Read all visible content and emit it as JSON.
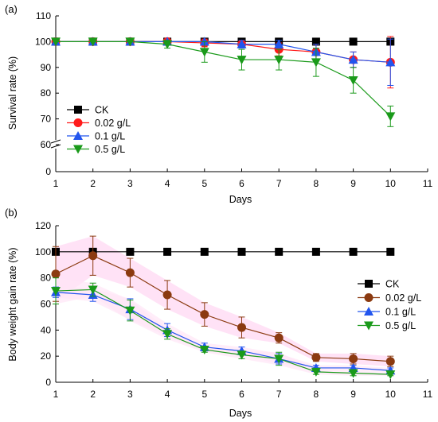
{
  "chart_data": [
    {
      "type": "line",
      "panel_label": "(a)",
      "xlabel": "Days",
      "ylabel": "Survival rate (%)",
      "x": [
        1,
        2,
        3,
        4,
        5,
        6,
        7,
        8,
        9,
        10
      ],
      "xticks": [
        1,
        2,
        3,
        4,
        5,
        6,
        7,
        8,
        9,
        10,
        11
      ],
      "yticks_upper": [
        60,
        70,
        80,
        90,
        100,
        110
      ],
      "yticks_lower": [
        0
      ],
      "ylim": [
        0,
        110
      ],
      "axis_break": [
        0,
        60
      ],
      "legend_position": "bottom-left",
      "series": [
        {
          "name": "CK",
          "color": "#000000",
          "marker": "square",
          "values": [
            100,
            100,
            100,
            100,
            100,
            100,
            100,
            100,
            100,
            100
          ],
          "errors": [
            0,
            0,
            0,
            0,
            0,
            0,
            0,
            0,
            0,
            0
          ]
        },
        {
          "name": "0.02 g/L",
          "color": "#ff1a1a",
          "marker": "circle",
          "values": [
            100,
            100,
            100,
            100,
            99.5,
            99,
            97,
            96,
            93,
            92
          ],
          "errors": [
            0,
            0,
            0,
            0,
            1.5,
            1.5,
            2.5,
            3,
            3,
            10
          ]
        },
        {
          "name": "0.1 g/L",
          "color": "#2255ee",
          "marker": "triangle-up",
          "values": [
            100,
            100,
            100,
            100,
            100,
            99,
            99,
            96,
            93,
            92
          ],
          "errors": [
            0,
            0,
            0,
            0,
            0,
            1.5,
            1.5,
            3,
            3,
            9
          ]
        },
        {
          "name": "0.5 g/L",
          "color": "#1a9a1a",
          "marker": "triangle-down",
          "values": [
            100,
            100,
            100,
            99,
            96,
            93,
            93,
            92,
            85,
            71
          ],
          "errors": [
            0,
            0,
            0,
            1.5,
            4,
            4,
            4,
            5.5,
            5,
            4
          ]
        }
      ]
    },
    {
      "type": "line",
      "panel_label": "(b)",
      "xlabel": "Days",
      "ylabel": "Body weight gain rate (%)",
      "x": [
        1,
        2,
        3,
        4,
        5,
        6,
        7,
        8,
        9,
        10
      ],
      "xticks": [
        1,
        2,
        3,
        4,
        5,
        6,
        7,
        8,
        9,
        10,
        11
      ],
      "yticks": [
        0,
        20,
        40,
        60,
        80,
        100,
        120
      ],
      "ylim": [
        0,
        120
      ],
      "legend_position": "right",
      "series": [
        {
          "name": "CK",
          "color": "#000000",
          "marker": "square",
          "values": [
            100,
            100,
            100,
            100,
            100,
            100,
            100,
            100,
            100,
            100
          ],
          "errors": [
            0,
            0,
            0,
            0,
            0,
            0,
            0,
            0,
            0,
            0
          ]
        },
        {
          "name": "0.02 g/L",
          "color": "#8b3a10",
          "marker": "circle",
          "values": [
            83,
            97,
            84,
            67,
            52,
            42,
            34,
            19,
            18,
            16
          ],
          "errors": [
            21,
            15,
            11,
            11,
            9,
            8,
            4,
            3,
            4,
            4
          ]
        },
        {
          "name": "0.1 g/L",
          "color": "#2255ee",
          "marker": "triangle-up",
          "values": [
            69,
            67,
            56,
            40,
            27,
            24,
            18,
            11,
            11,
            9
          ],
          "errors": [
            4,
            5,
            8,
            5,
            3,
            3,
            4,
            2,
            2,
            2
          ]
        },
        {
          "name": "0.5 g/L",
          "color": "#1a9a1a",
          "marker": "triangle-down",
          "values": [
            70,
            71,
            55,
            37,
            25,
            21,
            18,
            8,
            7,
            6
          ],
          "errors": [
            10,
            5,
            8,
            4,
            2,
            3,
            5,
            2,
            2,
            1
          ]
        }
      ]
    }
  ]
}
